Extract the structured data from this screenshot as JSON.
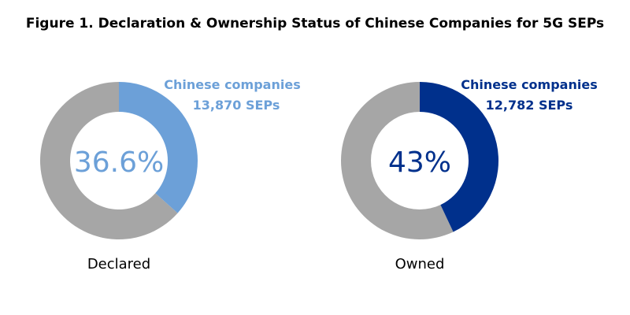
{
  "title": "Figure 1. Declaration & Ownership Status of Chinese Companies for 5G SEPs",
  "chart_data": [
    {
      "type": "pie",
      "label": "Declared",
      "center_text": "36.6%",
      "percent": 36.6,
      "callout_name": "Chinese companies",
      "callout_value": "13,870 SEPs",
      "highlight_color": "#6CA0D8",
      "remainder_color": "#A6A6A6"
    },
    {
      "type": "pie",
      "label": "Owned",
      "center_text": "43%",
      "percent": 43,
      "callout_name": "Chinese companies",
      "callout_value": "12,782 SEPs",
      "highlight_color": "#00308C",
      "remainder_color": "#A6A6A6"
    }
  ]
}
